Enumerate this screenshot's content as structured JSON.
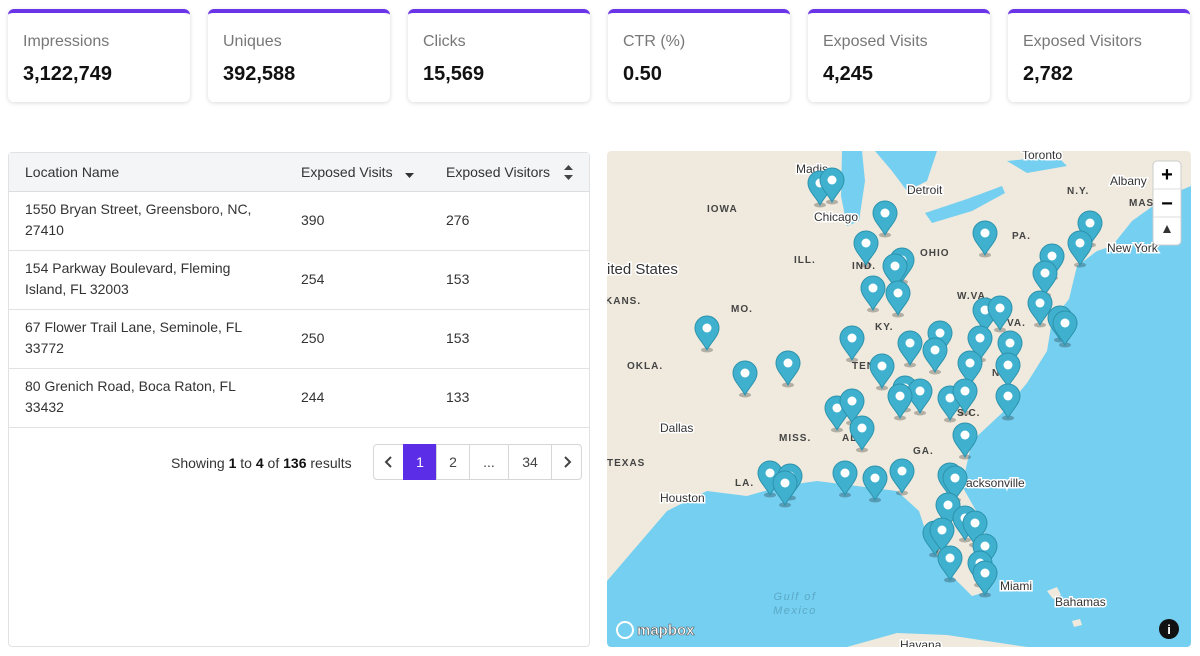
{
  "stats": [
    {
      "label": "Impressions",
      "value": "3,122,749"
    },
    {
      "label": "Uniques",
      "value": "392,588"
    },
    {
      "label": "Clicks",
      "value": "15,569"
    },
    {
      "label": "CTR (%)",
      "value": "0.50"
    },
    {
      "label": "Exposed Visits",
      "value": "4,245"
    },
    {
      "label": "Exposed Visitors",
      "value": "2,782"
    }
  ],
  "table": {
    "columns": [
      "Location Name",
      "Exposed Visits",
      "Exposed Visitors"
    ],
    "rows": [
      [
        "1550 Bryan Street, Greensboro, NC, 27410",
        390,
        276
      ],
      [
        "154 Parkway Boulevard, Fleming Island, FL 32003",
        254,
        153
      ],
      [
        "67 Flower Trail Lane, Seminole, FL 33772",
        250,
        153
      ],
      [
        "80 Grenich Road, Boca Raton, FL 33432",
        244,
        133
      ]
    ]
  },
  "pagination": {
    "summary": [
      "Showing",
      "1",
      "to",
      "4",
      "of",
      "136",
      "results"
    ],
    "pages": [
      "1",
      "2",
      "...",
      "34"
    ]
  },
  "map": {
    "cities": [
      "Toronto",
      "Madis",
      "Detroit",
      "Chicago",
      "Albany",
      "New York",
      "ited States",
      "Dallas",
      "Houston",
      "Jacksonville",
      "Miami",
      "Bahamas",
      "Havana"
    ],
    "states": [
      "IOWA",
      "N.Y.",
      "MAS",
      "PA.",
      "OHIO",
      "ILL.",
      "IND.",
      "KANS.",
      "W.VA.",
      "MO.",
      "KY.",
      "VA.",
      "OKLA.",
      "TENN.",
      "N.C.",
      "S.C.",
      "MISS.",
      "ALA.",
      "GA.",
      "TEXAS",
      "LA."
    ],
    "water": [
      "Gulf of",
      "Mexico"
    ],
    "attribution": "mapbox",
    "zoom_in": "+",
    "zoom_out": "−"
  }
}
